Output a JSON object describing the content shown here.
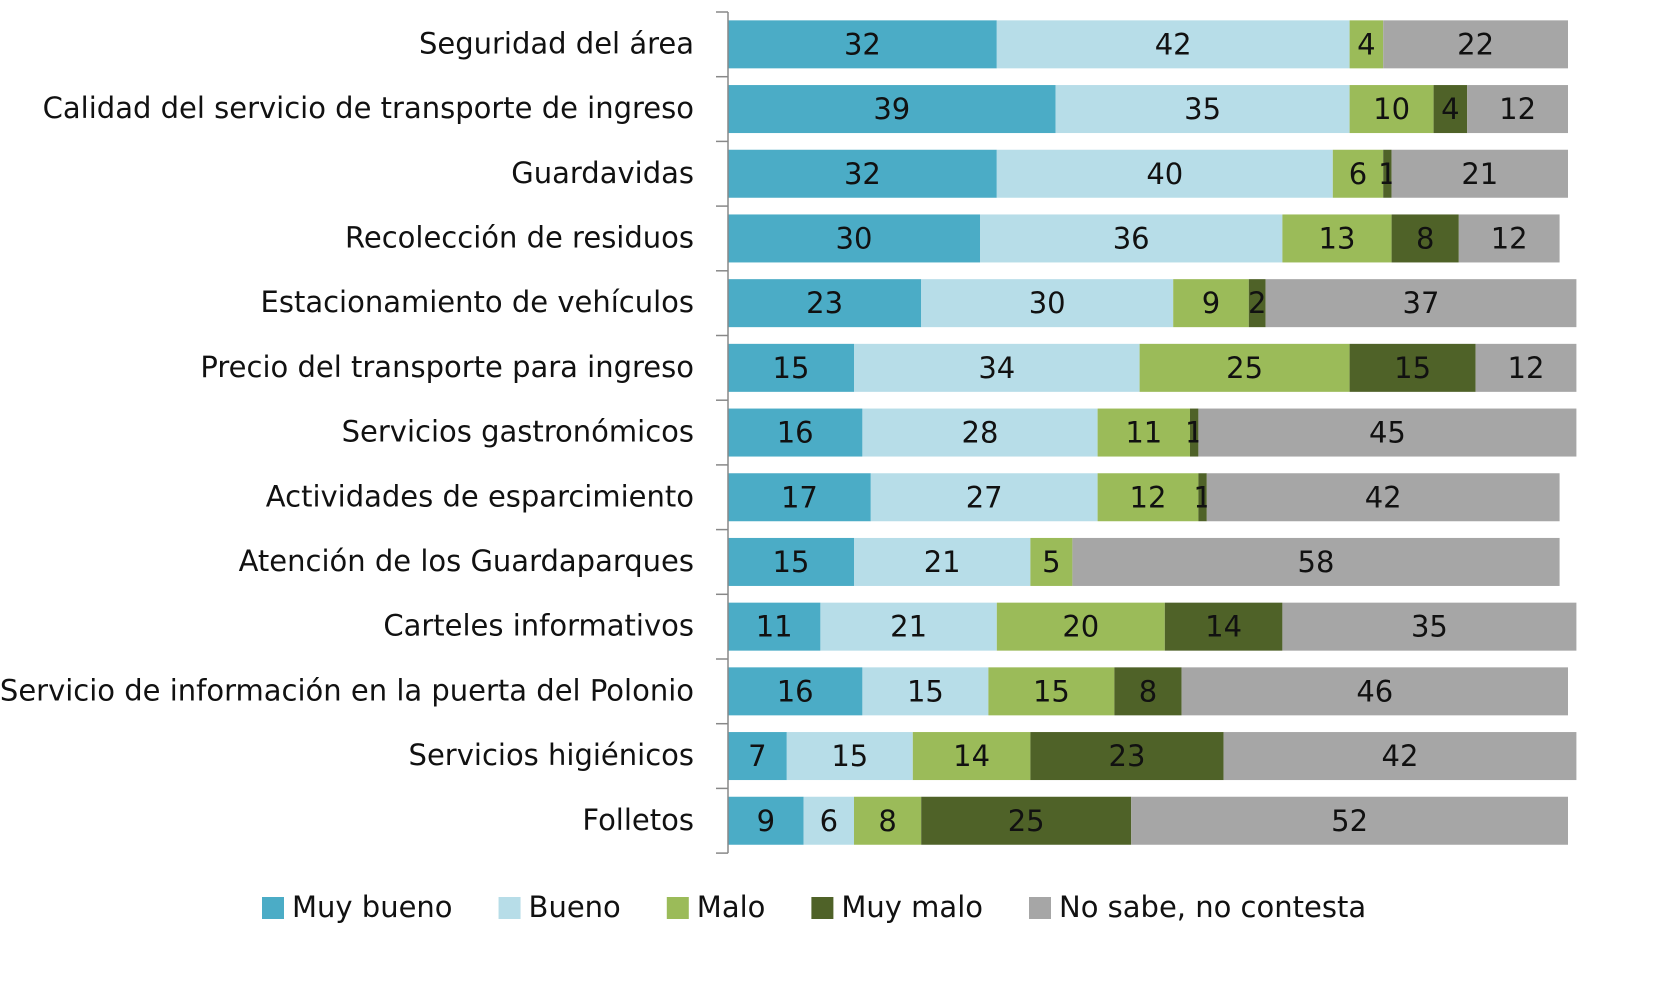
{
  "chart_data": {
    "type": "stacked_barh",
    "categories": [
      "Seguridad del área",
      "Calidad del servicio de transporte de ingreso",
      "Guardavidas",
      "Recolección de residuos",
      "Estacionamiento de vehículos",
      "Precio del transporte para ingreso",
      "Servicios gastronómicos",
      "Actividades de esparcimiento",
      "Atención de los Guardaparques",
      "Carteles informativos",
      "Servicio de información en la puerta del Polonio",
      "Servicios higiénicos",
      "Folletos"
    ],
    "series": [
      {
        "name": "Muy bueno",
        "color": "#4bacc6",
        "values": [
          32,
          39,
          32,
          30,
          23,
          15,
          16,
          17,
          15,
          11,
          16,
          7,
          9
        ]
      },
      {
        "name": "Bueno",
        "color": "#b7dde8",
        "values": [
          42,
          35,
          40,
          36,
          30,
          34,
          28,
          27,
          21,
          21,
          15,
          15,
          6
        ]
      },
      {
        "name": "Malo",
        "color": "#9bbb59",
        "values": [
          4,
          10,
          6,
          13,
          9,
          25,
          11,
          12,
          5,
          20,
          15,
          14,
          8
        ]
      },
      {
        "name": "Muy malo",
        "color": "#4f6228",
        "values": [
          null,
          4,
          1,
          8,
          2,
          15,
          1,
          1,
          null,
          14,
          8,
          23,
          25
        ]
      },
      {
        "name": "No sabe, no  contesta",
        "color": "#a6a6a6",
        "values": [
          22,
          12,
          21,
          12,
          37,
          12,
          45,
          42,
          58,
          35,
          46,
          42,
          52
        ]
      }
    ],
    "xlim": [
      0,
      100
    ],
    "legend": "bottom"
  }
}
